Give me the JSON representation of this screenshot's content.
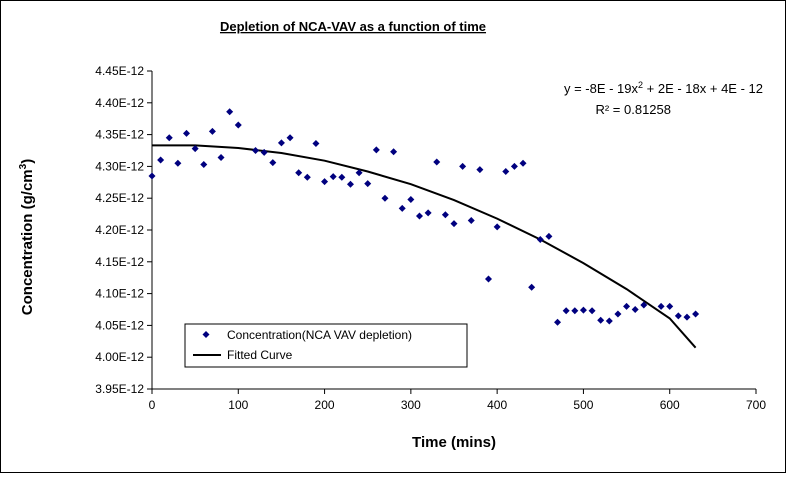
{
  "chart_data": {
    "type": "scatter",
    "title": "Depletion of NCA-VAV as a function of time",
    "xlabel": "Time (mins)",
    "ylabel_main": "Concentration (g/cm",
    "ylabel_sup": "3",
    "ylabel_close": ")",
    "xlim": [
      0,
      700
    ],
    "ylim": [
      3.95e-12,
      4.45e-12
    ],
    "x_ticks": [
      0,
      100,
      200,
      300,
      400,
      500,
      600,
      700
    ],
    "x_tick_labels": [
      "0",
      "100",
      "200",
      "300",
      "400",
      "500",
      "600",
      "700"
    ],
    "y_ticks": [
      3.95e-12,
      4e-12,
      4.05e-12,
      4.1e-12,
      4.15e-12,
      4.2e-12,
      4.25e-12,
      4.3e-12,
      4.35e-12,
      4.4e-12,
      4.45e-12
    ],
    "y_tick_labels": [
      "3.95E-12",
      "4.00E-12",
      "4.05E-12",
      "4.10E-12",
      "4.15E-12",
      "4.20E-12",
      "4.25E-12",
      "4.30E-12",
      "4.35E-12",
      "4.40E-12",
      "4.45E-12"
    ],
    "grid": false,
    "legend_position": "bottom-left",
    "equation_main": "y = -8E - 19x",
    "equation_sup": "2",
    "equation_rest": " + 2E - 18x + 4E  - 12",
    "r_squared": "R² = 0.81258",
    "series": [
      {
        "name": "Concentration(NCA VAV depletion)",
        "kind": "scatter",
        "color": "#00007f",
        "x": [
          0,
          10,
          20,
          30,
          40,
          50,
          60,
          70,
          80,
          90,
          100,
          120,
          130,
          140,
          150,
          160,
          170,
          180,
          190,
          200,
          210,
          220,
          230,
          240,
          250,
          260,
          270,
          280,
          290,
          300,
          310,
          320,
          330,
          340,
          350,
          360,
          370,
          380,
          390,
          400,
          410,
          420,
          430,
          440,
          450,
          460,
          470,
          480,
          490,
          500,
          510,
          520,
          530,
          540,
          550,
          560,
          570,
          590,
          600,
          610,
          620,
          630
        ],
        "y": [
          4.285e-12,
          4.31e-12,
          4.345e-12,
          4.305e-12,
          4.352e-12,
          4.328e-12,
          4.303e-12,
          4.355e-12,
          4.314e-12,
          4.386e-12,
          4.365e-12,
          4.325e-12,
          4.322e-12,
          4.306e-12,
          4.337e-12,
          4.345e-12,
          4.29e-12,
          4.283e-12,
          4.336e-12,
          4.276e-12,
          4.284e-12,
          4.283e-12,
          4.272e-12,
          4.29e-12,
          4.273e-12,
          4.326e-12,
          4.25e-12,
          4.323e-12,
          4.234e-12,
          4.248e-12,
          4.222e-12,
          4.227e-12,
          4.307e-12,
          4.224e-12,
          4.21e-12,
          4.3e-12,
          4.215e-12,
          4.295e-12,
          4.123e-12,
          4.205e-12,
          4.292e-12,
          4.3e-12,
          4.305e-12,
          4.11e-12,
          4.185e-12,
          4.19e-12,
          4.055e-12,
          4.073e-12,
          4.073e-12,
          4.074e-12,
          4.073e-12,
          4.058e-12,
          4.057e-12,
          4.068e-12,
          4.08e-12,
          4.075e-12,
          4.082e-12,
          4.08e-12,
          4.08e-12,
          4.065e-12,
          4.063e-12,
          4.068e-12
        ]
      },
      {
        "name": "Fitted Curve",
        "kind": "line",
        "color": "#000000",
        "x": [
          0,
          50,
          100,
          150,
          200,
          250,
          300,
          350,
          400,
          450,
          500,
          550,
          600,
          630
        ],
        "y": [
          4.333e-12,
          4.333e-12,
          4.329e-12,
          4.321e-12,
          4.309e-12,
          4.292e-12,
          4.272e-12,
          4.247e-12,
          4.218e-12,
          4.185e-12,
          4.148e-12,
          4.107e-12,
          4.061e-12,
          4.015e-12
        ]
      }
    ]
  }
}
